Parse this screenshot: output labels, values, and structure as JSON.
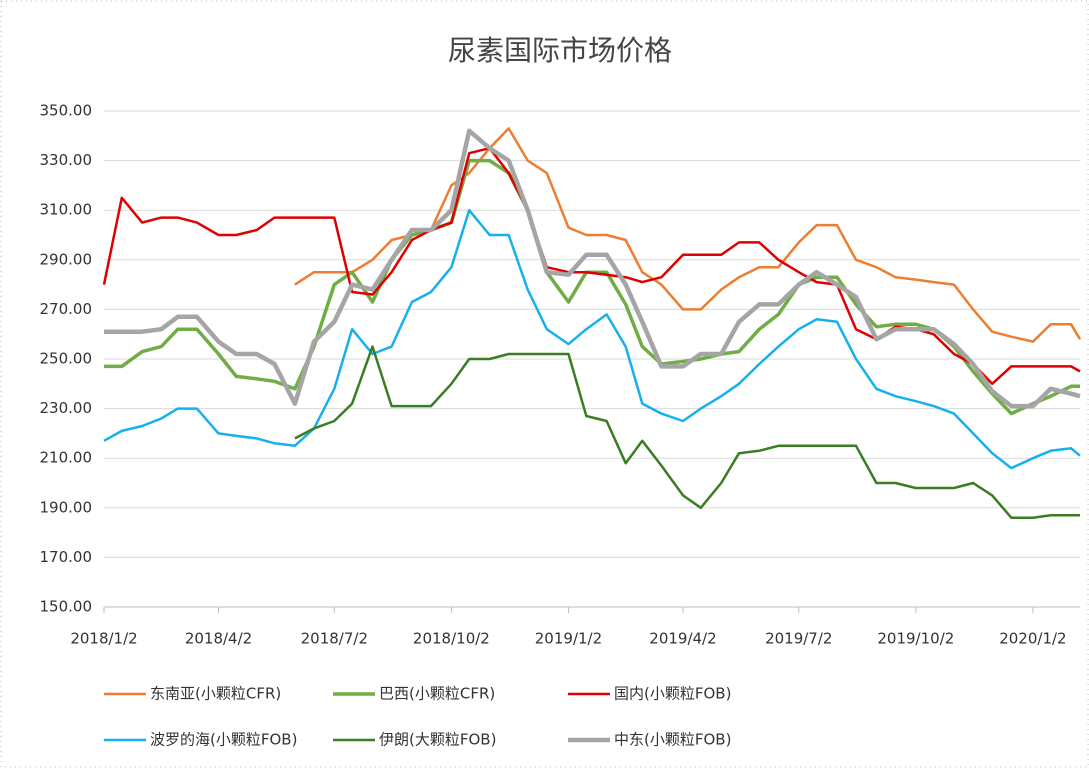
{
  "chart_data": {
    "type": "line",
    "title": "尿素国际市场价格",
    "x": [
      "2018/1/2",
      "2018/1/16",
      "2018/2/1",
      "2018/2/16",
      "2018/3/1",
      "2018/3/16",
      "2018/4/2",
      "2018/4/16",
      "2018/5/2",
      "2018/5/16",
      "2018/6/1",
      "2018/6/16",
      "2018/7/2",
      "2018/7/16",
      "2018/8/1",
      "2018/8/16",
      "2018/9/1",
      "2018/9/16",
      "2018/10/2",
      "2018/10/16",
      "2018/11/1",
      "2018/11/16",
      "2018/12/1",
      "2018/12/16",
      "2019/1/2",
      "2019/1/16",
      "2019/2/1",
      "2019/2/16",
      "2019/3/1",
      "2019/3/16",
      "2019/4/2",
      "2019/4/16",
      "2019/5/2",
      "2019/5/16",
      "2019/6/1",
      "2019/6/16",
      "2019/7/2",
      "2019/7/16",
      "2019/8/1",
      "2019/8/16",
      "2019/9/1",
      "2019/9/16",
      "2019/10/2",
      "2019/10/16",
      "2019/11/1",
      "2019/11/16",
      "2019/12/1",
      "2019/12/16",
      "2020/1/2",
      "2020/1/16",
      "2020/2/1",
      "2020/2/8"
    ],
    "xlim": [
      "2018/1/2",
      "2020/2/8"
    ],
    "xticks": [
      "2018/1/2",
      "2018/4/2",
      "2018/7/2",
      "2018/10/2",
      "2019/1/2",
      "2019/4/2",
      "2019/7/2",
      "2019/10/2",
      "2020/1/2"
    ],
    "ylim": [
      150,
      350
    ],
    "yticks": [
      {
        "value": 150,
        "label": "150.00"
      },
      {
        "value": 170,
        "label": "170.00"
      },
      {
        "value": 190,
        "label": "190.00"
      },
      {
        "value": 210,
        "label": "210.00"
      },
      {
        "value": 230,
        "label": "230.00"
      },
      {
        "value": 250,
        "label": "250.00"
      },
      {
        "value": 270,
        "label": "270.00"
      },
      {
        "value": 290,
        "label": "290.00"
      },
      {
        "value": 310,
        "label": "310.00"
      },
      {
        "value": 330,
        "label": "330.00"
      },
      {
        "value": 350,
        "label": "350.00"
      }
    ],
    "series": [
      {
        "name": "东南亚(小颗粒CFR)",
        "color": "#ed7d31",
        "width": 2.5,
        "values": [
          null,
          null,
          null,
          null,
          null,
          null,
          null,
          null,
          null,
          null,
          280,
          285,
          285,
          285,
          290,
          298,
          300,
          302,
          320,
          325,
          335,
          343,
          330,
          325,
          303,
          300,
          300,
          298,
          285,
          280,
          270,
          270,
          278,
          283,
          287,
          287,
          297,
          304,
          304,
          290,
          287,
          283,
          282,
          281,
          280,
          270,
          261,
          259,
          257,
          264,
          264,
          258
        ]
      },
      {
        "name": "巴西(小颗粒CFR)",
        "color": "#70ad47",
        "width": 3.5,
        "values": [
          247,
          247,
          253,
          255,
          262,
          262,
          252,
          243,
          242,
          241,
          238,
          255,
          280,
          285,
          273,
          290,
          300,
          302,
          305,
          330,
          330,
          325,
          310,
          285,
          273,
          285,
          285,
          272,
          255,
          248,
          249,
          250,
          252,
          253,
          262,
          268,
          280,
          283,
          283,
          272,
          263,
          264,
          264,
          262,
          255,
          245,
          236,
          228,
          232,
          235,
          239,
          239
        ]
      },
      {
        "name": "国内(小颗粒FOB)",
        "color": "#e00000",
        "width": 2.5,
        "values": [
          280,
          315,
          305,
          307,
          307,
          305,
          300,
          300,
          302,
          307,
          307,
          307,
          307,
          277,
          276,
          285,
          298,
          302,
          305,
          333,
          335,
          325,
          310,
          287,
          285,
          285,
          284,
          283,
          281,
          283,
          292,
          292,
          292,
          297,
          297,
          290,
          285,
          281,
          280,
          262,
          258,
          263,
          262,
          260,
          252,
          248,
          240,
          247,
          247,
          247,
          247,
          245
        ]
      },
      {
        "name": "波罗的海(小颗粒FOB)",
        "color": "#16b0ef",
        "width": 2.5,
        "values": [
          217,
          221,
          223,
          226,
          230,
          230,
          220,
          219,
          218,
          216,
          215,
          222,
          238,
          262,
          252,
          255,
          273,
          277,
          287,
          310,
          300,
          300,
          278,
          262,
          256,
          262,
          268,
          255,
          232,
          228,
          225,
          230,
          235,
          240,
          248,
          255,
          262,
          266,
          265,
          250,
          238,
          235,
          233,
          231,
          228,
          220,
          212,
          206,
          210,
          213,
          214,
          211
        ]
      },
      {
        "name": "伊朗(大颗粒FOB)",
        "color": "#3a7d22",
        "width": 2.5,
        "values": [
          null,
          null,
          null,
          null,
          null,
          null,
          null,
          null,
          null,
          null,
          218,
          222,
          225,
          232,
          255,
          231,
          231,
          231,
          240,
          250,
          250,
          252,
          252,
          252,
          252,
          227,
          225,
          208,
          217,
          207,
          195,
          190,
          200,
          212,
          213,
          215,
          215,
          215,
          215,
          215,
          200,
          200,
          198,
          198,
          198,
          200,
          195,
          186,
          186,
          187,
          187,
          187
        ]
      },
      {
        "name": "中东(小颗粒FOB)",
        "color": "#a5a5a5",
        "width": 4.5,
        "values": [
          261,
          261,
          261,
          262,
          267,
          267,
          257,
          252,
          252,
          248,
          232,
          257,
          265,
          280,
          278,
          290,
          302,
          302,
          310,
          342,
          335,
          330,
          310,
          285,
          284,
          292,
          292,
          280,
          265,
          247,
          247,
          252,
          252,
          265,
          272,
          272,
          280,
          285,
          280,
          275,
          258,
          262,
          262,
          262,
          256,
          248,
          237,
          231,
          231,
          238,
          236,
          235
        ]
      }
    ]
  }
}
